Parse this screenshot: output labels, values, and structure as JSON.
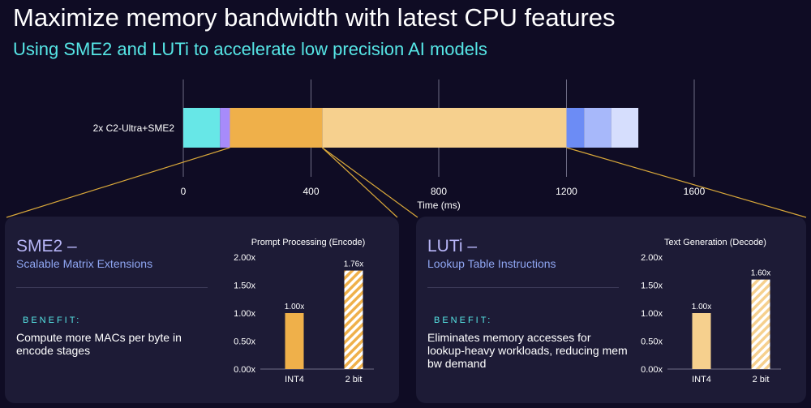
{
  "header": {
    "title": "Maximize memory bandwidth with latest CPU features",
    "subtitle": "Using SME2 and LUTi to accelerate low precision AI models"
  },
  "chart_data": [
    {
      "type": "bar",
      "orientation": "horizontal-stacked",
      "categories": [
        "2x C2-Ultra+SME2"
      ],
      "segments": [
        {
          "start": 0,
          "end": 115,
          "color": "#67e7e7"
        },
        {
          "start": 115,
          "end": 146,
          "color": "#a78bfa"
        },
        {
          "start": 146,
          "end": 435,
          "color": "#efb04a"
        },
        {
          "start": 435,
          "end": 1200,
          "color": "#f6d08e"
        },
        {
          "start": 1200,
          "end": 1255,
          "color": "#6c8cf5"
        },
        {
          "start": 1255,
          "end": 1340,
          "color": "#a7b8fa"
        },
        {
          "start": 1340,
          "end": 1425,
          "color": "#d6defd"
        }
      ],
      "xlabel": "Time (ms)",
      "xticks": [
        "0",
        "400",
        "800",
        "1200",
        "1600"
      ],
      "xlim": [
        0,
        1600
      ],
      "grid": true
    },
    {
      "type": "bar",
      "title": "Prompt Processing (Encode)",
      "categories": [
        "INT4",
        "2 bit"
      ],
      "values": [
        1.0,
        1.76
      ],
      "data_labels": [
        "1.00x",
        "1.76x"
      ],
      "yticks": [
        "0.00x",
        "0.50x",
        "1.00x",
        "1.50x",
        "2.00x"
      ],
      "ylim": [
        0,
        2
      ],
      "colors": [
        "#efb04a",
        "#efb04a"
      ],
      "hatched": [
        false,
        true
      ]
    },
    {
      "type": "bar",
      "title": "Text Generation (Decode)",
      "categories": [
        "INT4",
        "2 bit"
      ],
      "values": [
        1.0,
        1.6
      ],
      "data_labels": [
        "1.00x",
        "1.60x"
      ],
      "yticks": [
        "0.00x",
        "0.50x",
        "1.00x",
        "1.50x",
        "2.00x"
      ],
      "ylim": [
        0,
        2
      ],
      "colors": [
        "#f6d08e",
        "#f6d08e"
      ],
      "hatched": [
        false,
        true
      ]
    }
  ],
  "cards": {
    "left": {
      "title": "SME2 –",
      "subtitle": "Scalable Matrix Extensions",
      "benefit_label": "BENEFIT:",
      "benefit_text": "Compute more MACs per byte in encode stages"
    },
    "right": {
      "title": "LUTi –",
      "subtitle": "Lookup Table Instructions",
      "benefit_label": "BENEFIT:",
      "benefit_text": "Eliminates memory accesses for lookup-heavy workloads, reducing mem bw demand"
    }
  },
  "colors": {
    "background": "#0f0c24",
    "card": "#1d1b36",
    "accent_cyan": "#56e6e6",
    "accent_lavender": "#b8b6f8",
    "zoom_line": "#d9a83a"
  }
}
